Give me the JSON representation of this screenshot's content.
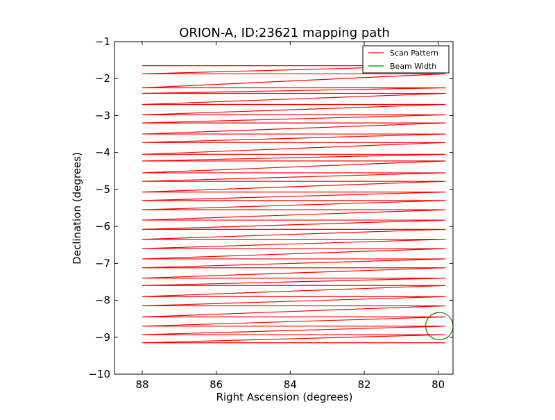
{
  "chart_data": {
    "type": "line",
    "title": "ORION-A, ID:23621 mapping path",
    "xlabel": "Right Ascension (degrees)",
    "ylabel": "Declination (degrees)",
    "xlim": [
      88.75,
      79.6
    ],
    "ylim": [
      -10,
      -1
    ],
    "x_inverted": true,
    "grid": false,
    "legend_position": "top-right",
    "xticks": [
      88,
      86,
      84,
      82,
      80
    ],
    "xtick_labels": [
      "88",
      "86",
      "84",
      "82",
      "80"
    ],
    "yticks": [
      -1,
      -2,
      -3,
      -4,
      -5,
      -6,
      -7,
      -8,
      -9,
      -10
    ],
    "ytick_labels": [
      "−1",
      "−2",
      "−3",
      "−4",
      "−5",
      "−6",
      "−7",
      "−8",
      "−9",
      "−10"
    ],
    "scan_dec_values": [
      -1.65,
      -1.87,
      -2.25,
      -2.4,
      -2.7,
      -2.98,
      -3.2,
      -3.5,
      -3.73,
      -4.05,
      -4.23,
      -4.55,
      -4.78,
      -5.07,
      -5.3,
      -5.55,
      -5.83,
      -6.08,
      -6.35,
      -6.6,
      -6.88,
      -7.12,
      -7.4,
      -7.6,
      -7.9,
      -8.15,
      -8.45,
      -8.7,
      -8.93,
      -9.15
    ],
    "series": [
      {
        "name": "Scan Pattern",
        "color": "#ff0000",
        "ra_start": 88.0,
        "ra_end": 79.8
      },
      {
        "name": "Beam Width",
        "color": "#008000",
        "center_ra": 79.97,
        "center_dec": -8.7,
        "radius_deg": 0.37
      }
    ]
  }
}
